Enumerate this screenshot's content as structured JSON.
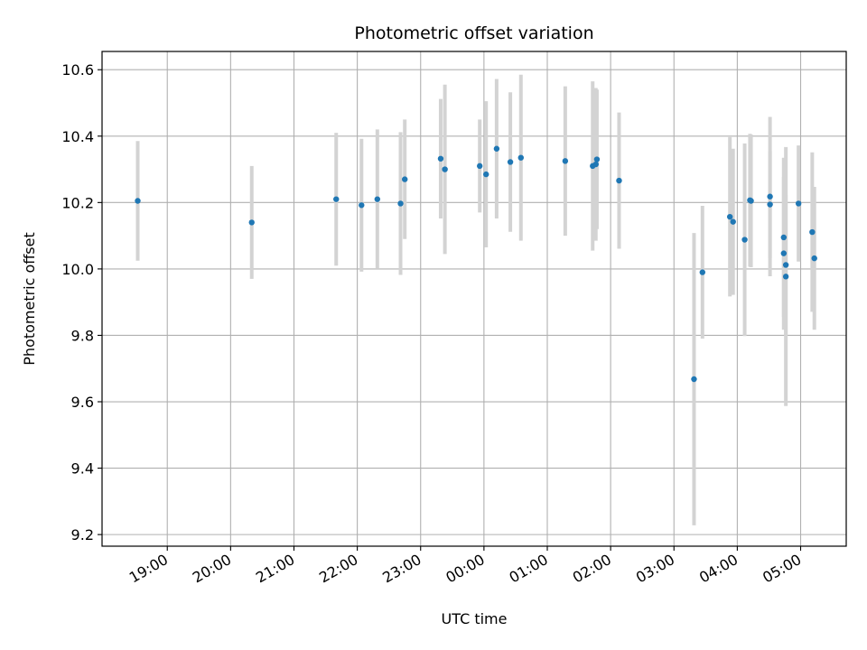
{
  "chart_data": {
    "type": "scatter",
    "title": "Photometric offset variation",
    "xlabel": "UTC time",
    "ylabel": "Photometric offset",
    "x_tick_labels": [
      "19:00",
      "20:00",
      "21:00",
      "22:00",
      "23:00",
      "00:00",
      "01:00",
      "02:00",
      "03:00",
      "04:00",
      "05:00"
    ],
    "y_tick_labels": [
      "9.2",
      "9.4",
      "9.6",
      "9.8",
      "10.0",
      "10.2",
      "10.4",
      "10.6"
    ],
    "x_domain_hours": [
      17.97,
      29.72
    ],
    "ylim": [
      9.165,
      10.655
    ],
    "grid": true,
    "marker_color": "#1f77b4",
    "errorbar_color": "#d3d3d3",
    "series": [
      {
        "points": [
          {
            "x": "18:32",
            "y": 10.205,
            "err": 0.18
          },
          {
            "x": "20:20",
            "y": 10.14,
            "err": 0.17
          },
          {
            "x": "21:40",
            "y": 10.21,
            "err": 0.2
          },
          {
            "x": "22:04",
            "y": 10.192,
            "err": 0.2
          },
          {
            "x": "22:19",
            "y": 10.21,
            "err": 0.21
          },
          {
            "x": "22:41",
            "y": 10.197,
            "err": 0.215
          },
          {
            "x": "22:45",
            "y": 10.27,
            "err": 0.18
          },
          {
            "x": "23:19",
            "y": 10.332,
            "err": 0.18
          },
          {
            "x": "23:23",
            "y": 10.3,
            "err": 0.255
          },
          {
            "x": "23:56",
            "y": 10.31,
            "err": 0.14
          },
          {
            "x": "00:02",
            "y": 10.285,
            "err": 0.22
          },
          {
            "x": "00:12",
            "y": 10.362,
            "err": 0.21
          },
          {
            "x": "00:25",
            "y": 10.322,
            "err": 0.21
          },
          {
            "x": "00:35",
            "y": 10.335,
            "err": 0.25
          },
          {
            "x": "01:17",
            "y": 10.325,
            "err": 0.225
          },
          {
            "x": "01:43",
            "y": 10.31,
            "err": 0.255
          },
          {
            "x": "01:46",
            "y": 10.315,
            "err": 0.23
          },
          {
            "x": "01:47",
            "y": 10.33,
            "err": 0.21
          },
          {
            "x": "02:08",
            "y": 10.266,
            "err": 0.205
          },
          {
            "x": "03:19",
            "y": 9.668,
            "err": 0.44
          },
          {
            "x": "03:27",
            "y": 9.99,
            "err": 0.2
          },
          {
            "x": "03:53",
            "y": 10.157,
            "err": 0.24
          },
          {
            "x": "03:56",
            "y": 10.142,
            "err": 0.22
          },
          {
            "x": "04:07",
            "y": 10.088,
            "err": 0.29
          },
          {
            "x": "04:12",
            "y": 10.207,
            "err": 0.2
          },
          {
            "x": "04:13",
            "y": 10.205,
            "err": 0.2
          },
          {
            "x": "04:31",
            "y": 10.218,
            "err": 0.24
          },
          {
            "x": "04:31",
            "y": 10.194,
            "err": 0.16
          },
          {
            "x": "04:44",
            "y": 10.095,
            "err": 0.24
          },
          {
            "x": "04:44",
            "y": 10.047,
            "err": 0.23
          },
          {
            "x": "04:46",
            "y": 10.012,
            "err": 0.21
          },
          {
            "x": "04:46",
            "y": 9.977,
            "err": 0.39
          },
          {
            "x": "04:58",
            "y": 10.197,
            "err": 0.175
          },
          {
            "x": "05:11",
            "y": 10.111,
            "err": 0.24
          },
          {
            "x": "05:13",
            "y": 10.032,
            "err": 0.215
          }
        ]
      }
    ]
  }
}
